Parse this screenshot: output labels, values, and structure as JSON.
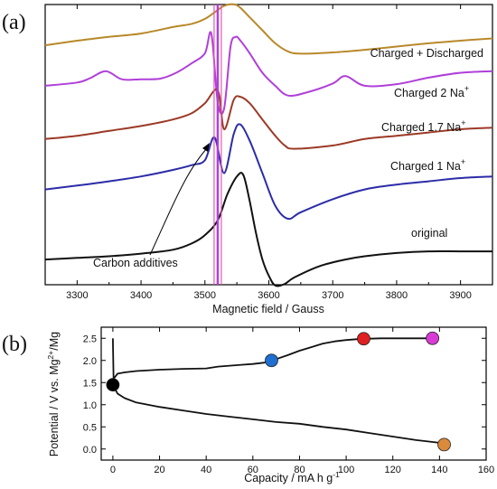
{
  "chart_data": [
    {
      "panel": "(a)",
      "type": "line",
      "xlabel": "Magnetic field / Gauss",
      "ylabel": "",
      "xlim": [
        3250,
        3950
      ],
      "xticks": [
        3300,
        3400,
        3500,
        3600,
        3700,
        3800,
        3900
      ],
      "grid": false,
      "legend": "none",
      "annotation": "Carbon additives",
      "series": [
        {
          "name": "Charged + Discharged",
          "color": "#b8892a",
          "offset": 0.85,
          "x": [
            3250,
            3300,
            3350,
            3400,
            3450,
            3480,
            3500,
            3515,
            3530,
            3545,
            3555,
            3570,
            3590,
            3610,
            3630,
            3650,
            3700,
            3750,
            3800,
            3850,
            3900,
            3950
          ],
          "values": [
            0.4,
            1.8,
            3,
            4,
            6,
            7,
            8.5,
            10.5,
            12.5,
            13,
            12,
            9,
            5,
            1,
            -1.5,
            -2.2,
            -1.8,
            -1,
            0,
            1,
            1.8,
            2.5
          ]
        },
        {
          "name": "Charged 2 Na+",
          "color": "#b040d8",
          "offset": 0.71,
          "x": [
            3250,
            3300,
            3320,
            3345,
            3370,
            3400,
            3430,
            3455,
            3480,
            3500,
            3510,
            3520,
            3530,
            3540,
            3548,
            3555,
            3570,
            3590,
            3610,
            3630,
            3660,
            3700,
            3720,
            3750,
            3800,
            3850,
            3900,
            3950
          ],
          "values": [
            0,
            1,
            2.3,
            4.5,
            2,
            2,
            2.2,
            4,
            7,
            10,
            16,
            -5,
            -7,
            12,
            15,
            14,
            10,
            4,
            0,
            -3,
            -2,
            0.7,
            3,
            0,
            0.5,
            2.5,
            4,
            4.5
          ]
        },
        {
          "name": "Charged 1.7 Na+",
          "color": "#9c3a26",
          "offset": 0.52,
          "x": [
            3250,
            3300,
            3350,
            3400,
            3450,
            3480,
            3500,
            3520,
            3530,
            3545,
            3555,
            3570,
            3590,
            3610,
            3625,
            3640,
            3700,
            3750,
            3800,
            3850,
            3900,
            3950
          ],
          "values": [
            0,
            1,
            2.5,
            4,
            6,
            8,
            11,
            15,
            3,
            12,
            13,
            11,
            6,
            1,
            -2,
            -3,
            -2,
            0,
            1,
            2,
            3,
            3.5
          ]
        },
        {
          "name": "Charged 1 Na+",
          "color": "#2c2ca8",
          "offset": 0.34,
          "x": [
            3250,
            3300,
            3350,
            3400,
            3450,
            3480,
            3500,
            3515,
            3530,
            3545,
            3555,
            3570,
            3590,
            3610,
            3630,
            3650,
            3700,
            3750,
            3800,
            3850,
            3900,
            3950
          ],
          "values": [
            0,
            1.2,
            2.5,
            4,
            6,
            7.5,
            9,
            16,
            5,
            17,
            20,
            15,
            5,
            -5,
            -9,
            -7,
            -3,
            0,
            1.5,
            2.5,
            3.5,
            4
          ]
        },
        {
          "name": "original",
          "color": "#111111",
          "offset": 0.09,
          "x": [
            3250,
            3300,
            3350,
            3400,
            3450,
            3480,
            3500,
            3520,
            3535,
            3550,
            3560,
            3570,
            3580,
            3590,
            3600,
            3610,
            3625,
            3640,
            3680,
            3720,
            3750,
            3800,
            3850,
            3900,
            3950
          ],
          "values": [
            0,
            0.5,
            1,
            1.8,
            3,
            5,
            7.5,
            12,
            20,
            25.5,
            26,
            18,
            8,
            0,
            -5,
            -8,
            -7.5,
            -5.5,
            -2,
            0,
            1,
            2,
            2.5,
            2.5,
            2.5
          ]
        }
      ]
    },
    {
      "panel": "(b)",
      "type": "line",
      "xlabel": "Capacity / mA h g-1",
      "ylabel": "Potential / V vs. Mg2+/Mg",
      "xlim": [
        -5,
        160
      ],
      "ylim": [
        -0.25,
        2.75
      ],
      "xticks": [
        0,
        20,
        40,
        60,
        80,
        100,
        120,
        140,
        160
      ],
      "yticks": [
        0.0,
        0.5,
        1.0,
        1.5,
        2.0,
        2.5
      ],
      "grid": false,
      "legend": "none",
      "series": [
        {
          "name": "",
          "color": "#111111",
          "x": [
            0,
            0.5,
            2,
            5,
            10,
            20,
            30,
            40,
            45,
            50,
            55,
            60,
            65,
            68,
            70,
            75,
            80,
            85,
            90,
            95,
            100,
            105,
            107.5,
            110,
            115,
            120,
            125,
            130,
            135,
            137
          ],
          "values": [
            1.45,
            1.6,
            1.7,
            1.73,
            1.76,
            1.79,
            1.81,
            1.82,
            1.86,
            1.88,
            1.9,
            1.92,
            1.95,
            2.0,
            2.03,
            2.12,
            2.22,
            2.3,
            2.38,
            2.43,
            2.46,
            2.48,
            2.49,
            2.49,
            2.5,
            2.5,
            2.5,
            2.5,
            2.5,
            2.5
          ]
        },
        {
          "name": "",
          "color": "#111111",
          "x": [
            0,
            0.3,
            1,
            2,
            5,
            10,
            20,
            30,
            40,
            50,
            60,
            70,
            80,
            90,
            100,
            110,
            120,
            130,
            135,
            140,
            142
          ],
          "values": [
            2.5,
            1.55,
            1.35,
            1.25,
            1.15,
            1.05,
            0.95,
            0.87,
            0.79,
            0.73,
            0.67,
            0.61,
            0.57,
            0.5,
            0.44,
            0.36,
            0.28,
            0.2,
            0.17,
            0.14,
            0.1
          ]
        }
      ],
      "markers": [
        {
          "x": 0,
          "y": 1.45,
          "color": "#000000"
        },
        {
          "x": 68,
          "y": 2.0,
          "color": "#1e6fcf"
        },
        {
          "x": 107.5,
          "y": 2.49,
          "color": "#e02020"
        },
        {
          "x": 137,
          "y": 2.5,
          "color": "#d83bd6"
        },
        {
          "x": 142,
          "y": 0.1,
          "color": "#d98a3a"
        }
      ]
    }
  ]
}
